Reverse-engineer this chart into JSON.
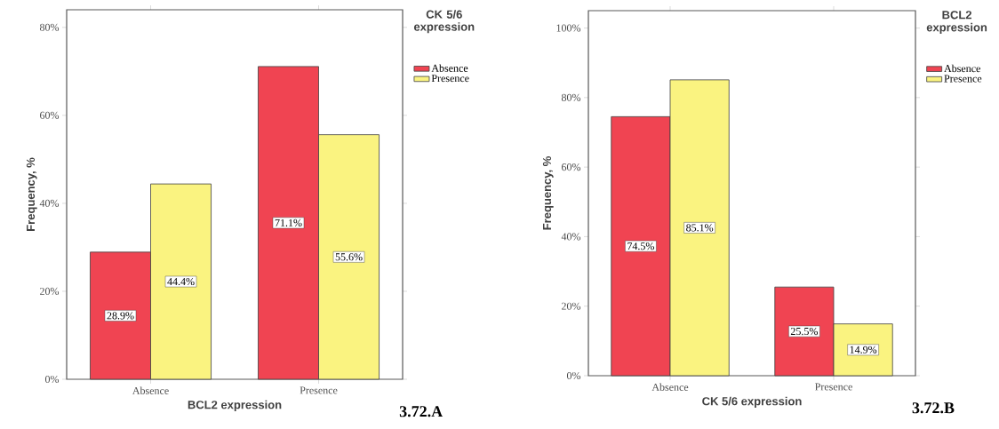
{
  "chart_data": [
    {
      "type": "bar",
      "xlabel": "BCL2 expression",
      "ylabel": "Frequency, %",
      "legend_title": "CK 5/6 expression",
      "legend": "top right",
      "categories": [
        "Absence",
        "Presence"
      ],
      "series": [
        {
          "name": "Absence",
          "color": "#f04452",
          "values": [
            28.9,
            71.1
          ],
          "value_labels": [
            "28.9%",
            "71.1%"
          ]
        },
        {
          "name": "Presence",
          "color": "#faf380",
          "values": [
            44.4,
            55.6
          ],
          "value_labels": [
            "44.4%",
            "55.6%"
          ]
        }
      ],
      "ylim": [
        0,
        84
      ],
      "yticks": [
        {
          "value": 0,
          "label": "0%"
        },
        {
          "value": 20,
          "label": "20%"
        },
        {
          "value": 40,
          "label": "40%"
        },
        {
          "value": 60,
          "label": "60%"
        },
        {
          "value": 80,
          "label": "80%"
        }
      ],
      "annotations": [
        "3.72.A"
      ]
    },
    {
      "type": "bar",
      "xlabel": "CK 5/6 expression",
      "ylabel": "Frequency, %",
      "legend_title": "BCL2 expression",
      "legend": "top right",
      "categories": [
        "Absence",
        "Presence"
      ],
      "series": [
        {
          "name": "Absence",
          "color": "#f04452",
          "values": [
            74.5,
            25.5
          ],
          "value_labels": [
            "74.5%",
            "25.5%"
          ]
        },
        {
          "name": "Presence",
          "color": "#faf380",
          "values": [
            85.1,
            14.9
          ],
          "value_labels": [
            "85.1%",
            "14.9%"
          ]
        }
      ],
      "ylim": [
        0,
        105
      ],
      "yticks": [
        {
          "value": 0,
          "label": "0%"
        },
        {
          "value": 20,
          "label": "20%"
        },
        {
          "value": 40,
          "label": "40%"
        },
        {
          "value": 60,
          "label": "60%"
        },
        {
          "value": 80,
          "label": "80%"
        },
        {
          "value": 100,
          "label": "100%"
        }
      ],
      "annotations": [
        "3.72.B"
      ]
    }
  ]
}
